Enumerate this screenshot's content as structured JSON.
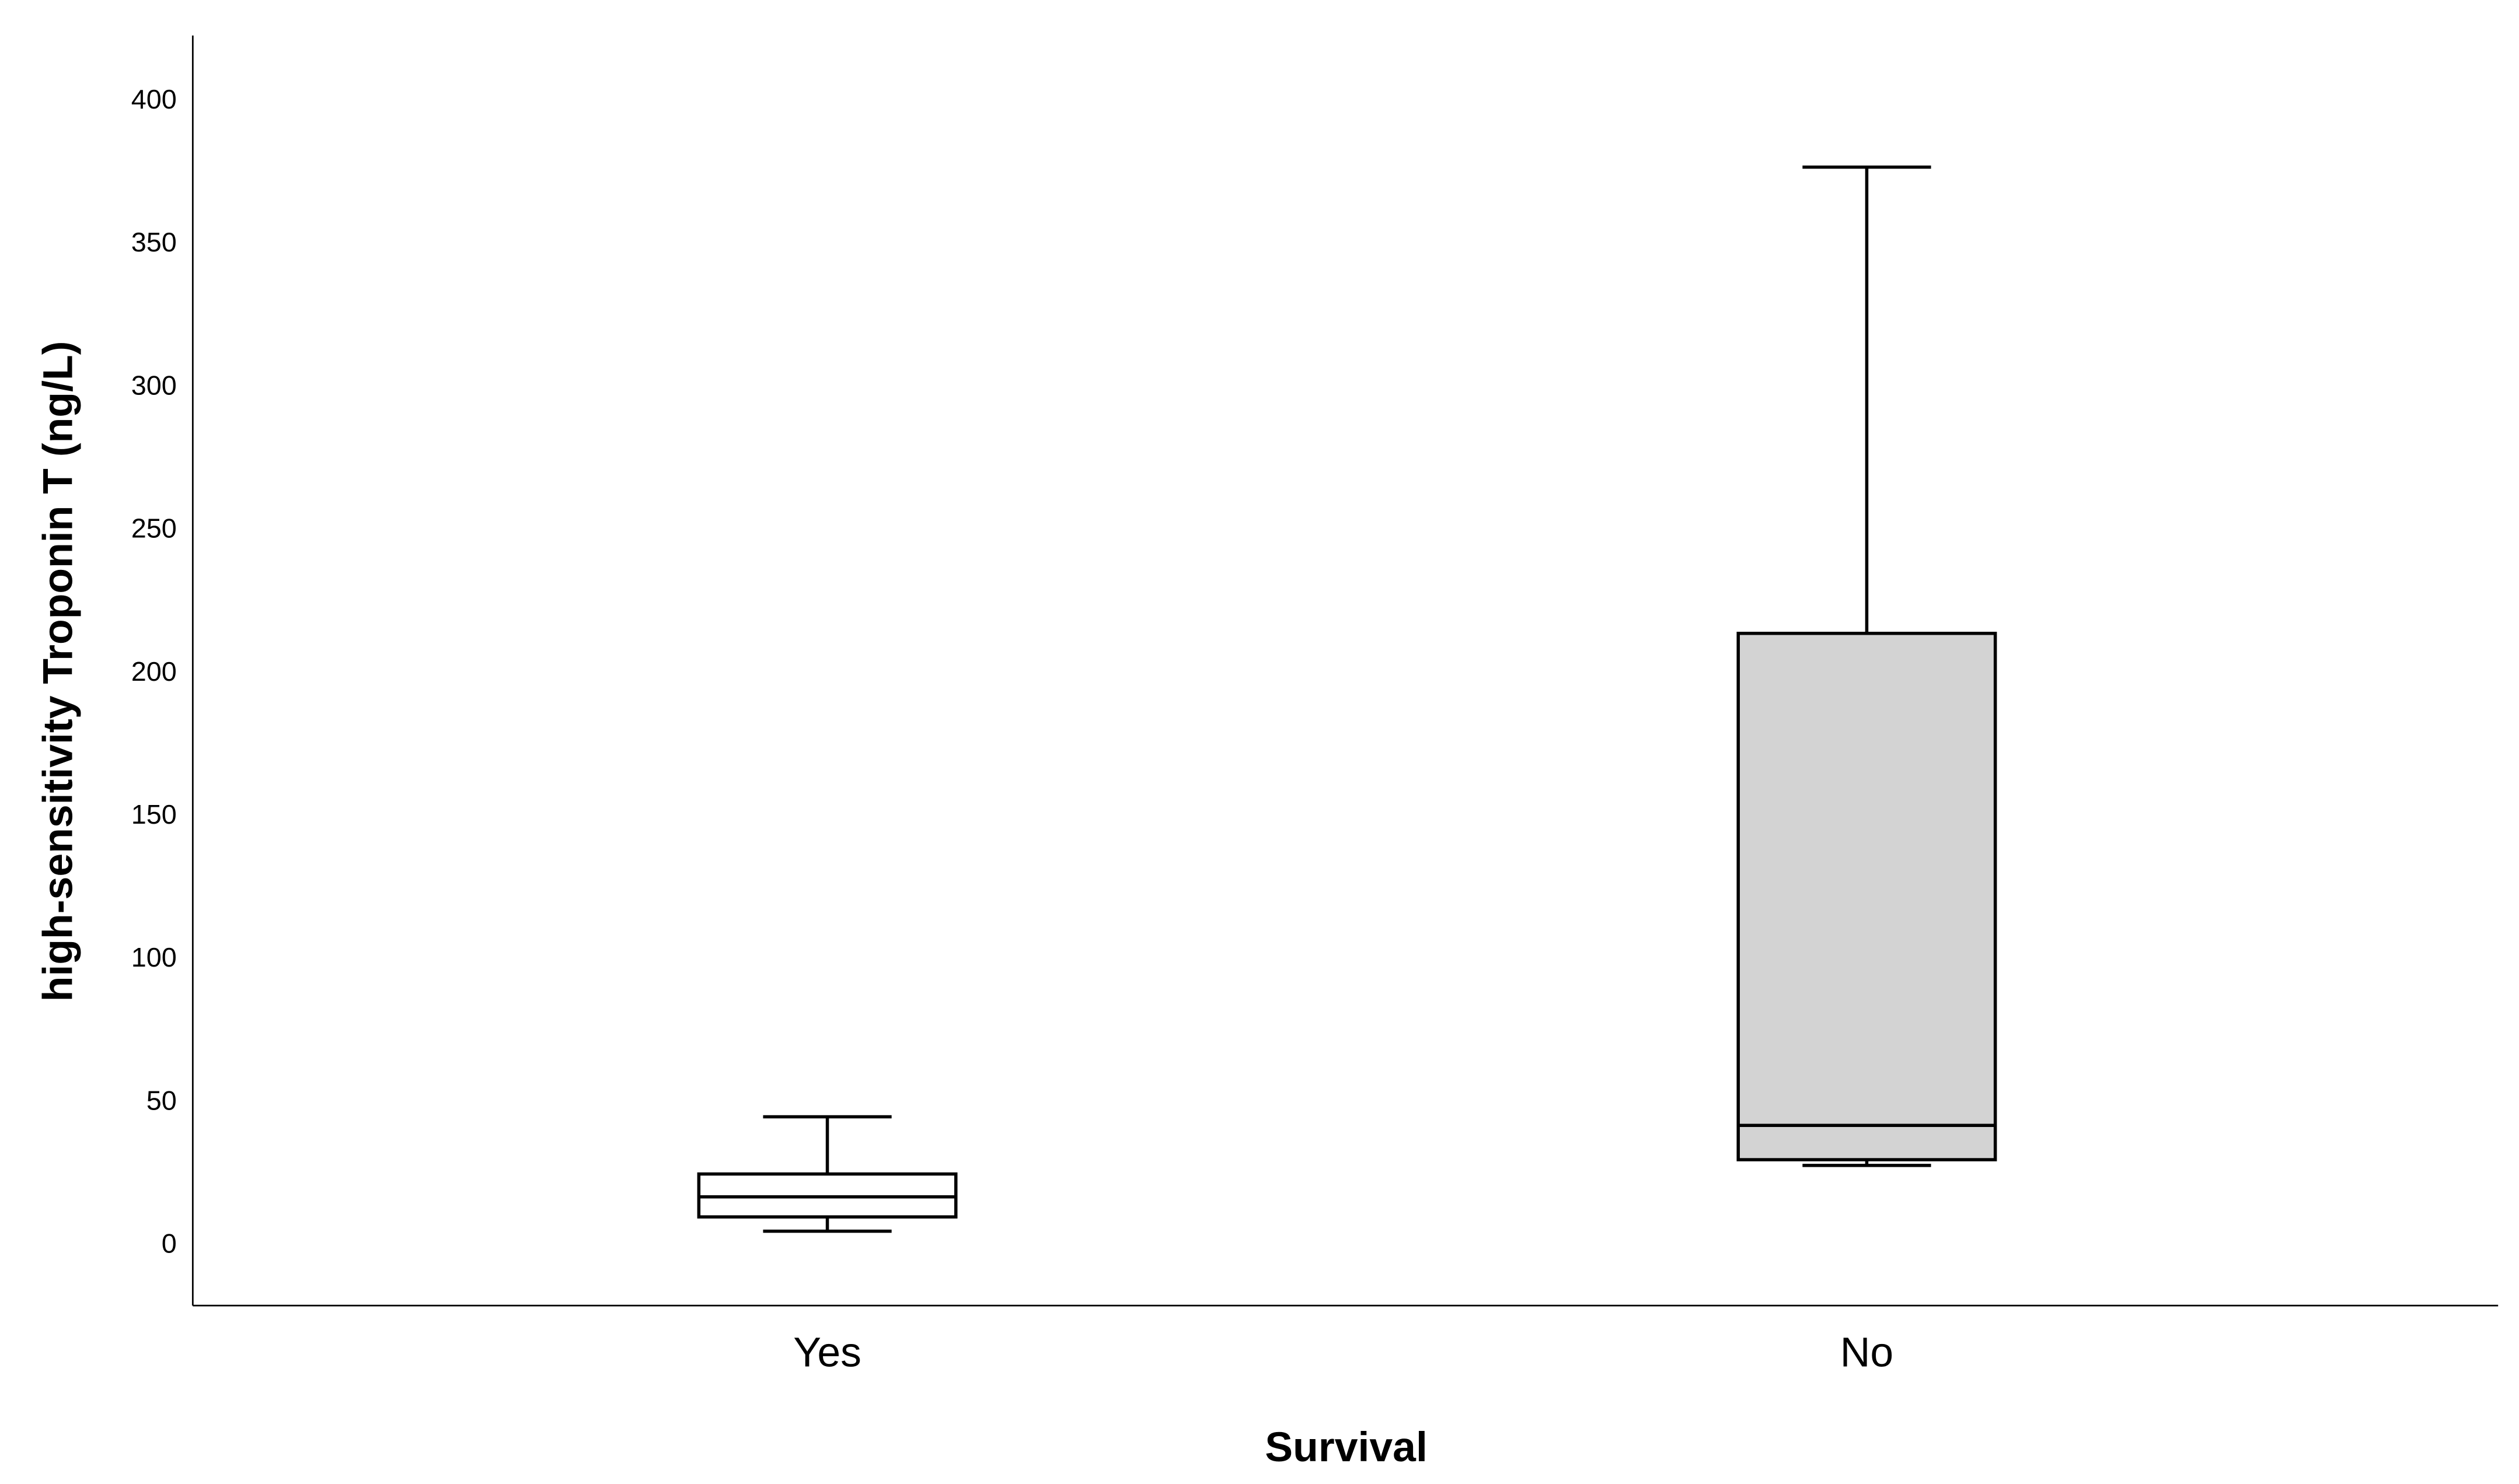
{
  "chart_data": {
    "type": "box",
    "x_label": "Survival",
    "y_label": "high-sensitivity Troponin T (ng/L)",
    "categories": [
      "Yes",
      "No"
    ],
    "boxes": [
      {
        "min": 5,
        "q1": 10,
        "median": 17,
        "q3": 25,
        "max": 45,
        "color": "#ffffff"
      },
      {
        "min": 28,
        "q1": 30,
        "median": 42,
        "q3": 214,
        "max": 377,
        "color": "#d3d3d3"
      }
    ],
    "ylim": [
      -21,
      423
    ],
    "yticks": [
      0,
      50,
      100,
      150,
      200,
      250,
      300,
      350,
      400
    ],
    "grid": false
  }
}
